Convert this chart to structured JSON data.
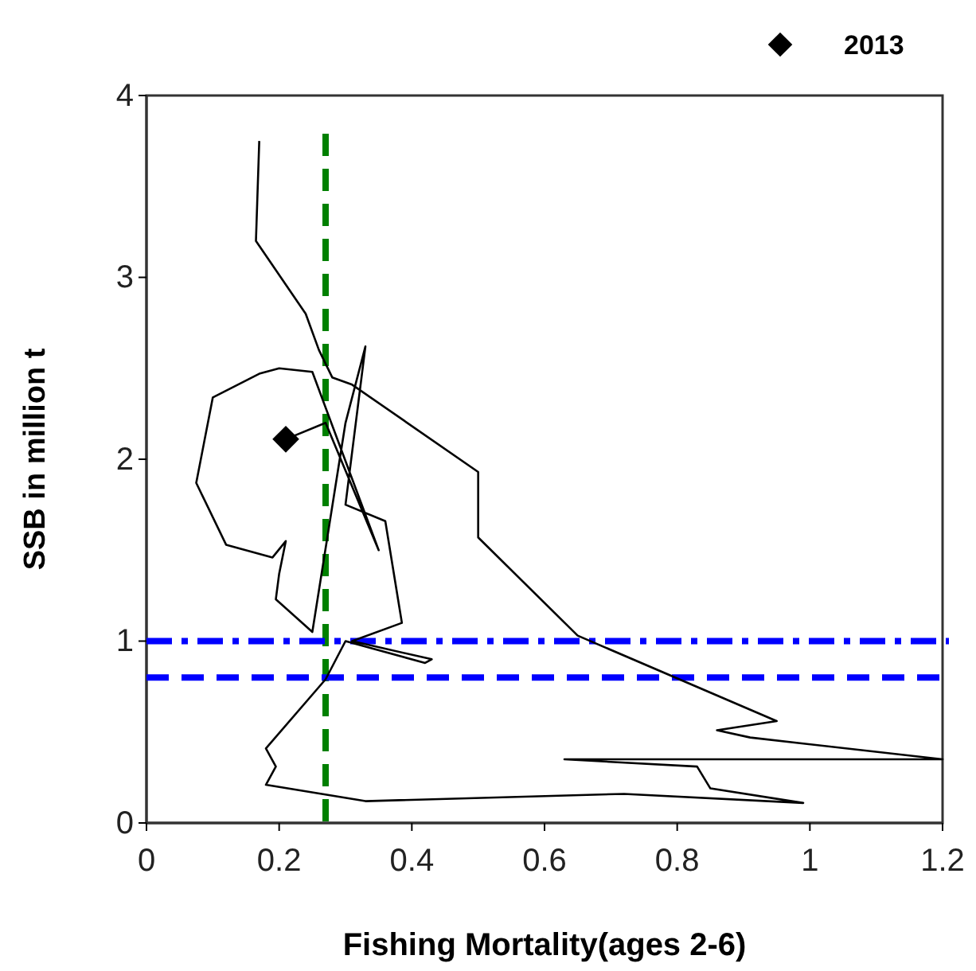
{
  "chart_data": {
    "type": "line",
    "xlabel": "Fishing Mortality(ages 2-6)",
    "ylabel": "SSB in million t",
    "xlim": [
      0,
      1.2
    ],
    "xticks": [
      0,
      0.2,
      0.4,
      0.6,
      0.8,
      1,
      1.2
    ],
    "ylim": [
      0,
      4
    ],
    "yticks": [
      0,
      1,
      2,
      3,
      4
    ],
    "grid": false,
    "legend": "top right",
    "series": [
      {
        "type": "line",
        "color": "#000000",
        "x": [
          0.17,
          0.165,
          0.24,
          0.26,
          0.28,
          0.31,
          0.5,
          0.5,
          0.65,
          0.95,
          0.86,
          0.91,
          1.2,
          0.63,
          0.83,
          0.85,
          0.99,
          0.72,
          0.33,
          0.18,
          0.195,
          0.18,
          0.27,
          0.3,
          0.42,
          0.43,
          0.31,
          0.385,
          0.36,
          0.3,
          0.33,
          0.3,
          0.25,
          0.195,
          0.2,
          0.21,
          0.19,
          0.12,
          0.075,
          0.1,
          0.17,
          0.2,
          0.25,
          0.35,
          0.27,
          0.21
        ],
        "values": [
          3.75,
          3.2,
          2.8,
          2.6,
          2.45,
          2.41,
          1.93,
          1.57,
          1.03,
          0.56,
          0.51,
          0.47,
          0.35,
          0.35,
          0.31,
          0.19,
          0.11,
          0.16,
          0.12,
          0.21,
          0.31,
          0.41,
          0.79,
          1.0,
          0.88,
          0.9,
          1.0,
          1.1,
          1.66,
          1.75,
          2.62,
          2.2,
          1.05,
          1.23,
          1.37,
          1.55,
          1.46,
          1.53,
          1.87,
          2.34,
          2.47,
          2.5,
          2.48,
          1.5,
          2.2,
          2.11
        ]
      },
      {
        "type": "scatter",
        "name": "2013",
        "color": "#000000",
        "marker": "diamond",
        "x": [
          0.21
        ],
        "values": [
          2.11
        ]
      }
    ],
    "ref_lines": [
      {
        "axis": "x",
        "value": 0.27,
        "color": "#008000",
        "line_style": "dashed"
      },
      {
        "axis": "y",
        "value": 1,
        "color": "#0000ff",
        "line_style": "dashdot"
      },
      {
        "axis": "y",
        "value": 0.8,
        "color": "#0000ff",
        "line_style": "dashed"
      }
    ]
  }
}
